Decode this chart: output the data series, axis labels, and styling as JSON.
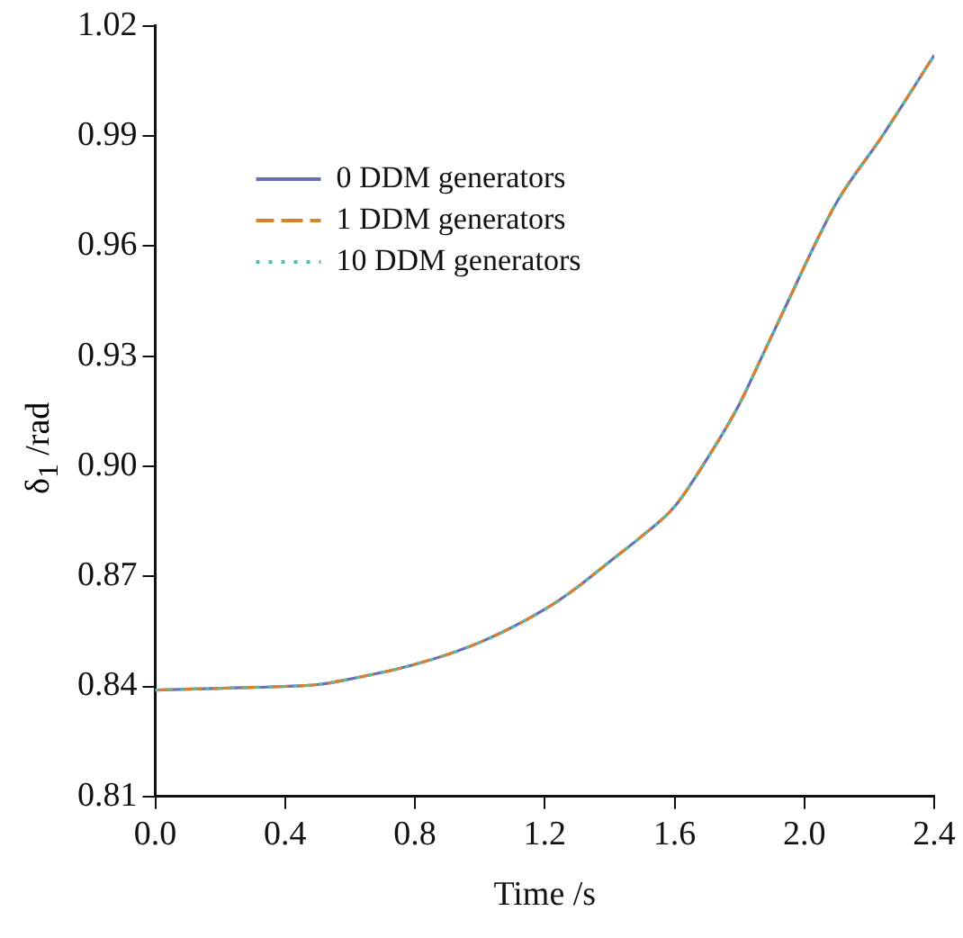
{
  "chart_data": {
    "type": "line",
    "xlabel": "Time /s",
    "ylabel": "δ$_{1}$ /rad",
    "x": [
      0,
      0.2,
      0.4,
      0.5,
      0.6,
      0.8,
      1.0,
      1.2,
      1.3,
      1.4,
      1.5,
      1.6,
      1.7,
      1.8,
      1.87,
      1.95,
      2.03,
      2.1,
      2.24,
      2.4
    ],
    "series": [
      {
        "name": "0 DDM generators",
        "color": "#6a6fb5",
        "line_style": "solid",
        "values": [
          0.839,
          0.8395,
          0.84,
          0.8405,
          0.842,
          0.846,
          0.852,
          0.861,
          0.867,
          0.874,
          0.881,
          0.889,
          0.902,
          0.917,
          0.93,
          0.945,
          0.96,
          0.972,
          0.99,
          1.012
        ]
      },
      {
        "name": "1 DDM generators",
        "color": "#d9822b",
        "line_style": "dashed",
        "values": [
          0.839,
          0.8395,
          0.84,
          0.8405,
          0.842,
          0.846,
          0.852,
          0.861,
          0.867,
          0.874,
          0.881,
          0.889,
          0.902,
          0.917,
          0.93,
          0.945,
          0.96,
          0.972,
          0.99,
          1.012
        ]
      },
      {
        "name": "10 DDM generators",
        "color": "#4cc1b0",
        "line_style": "dotted",
        "values": [
          0.839,
          0.8395,
          0.84,
          0.8405,
          0.842,
          0.846,
          0.852,
          0.861,
          0.867,
          0.874,
          0.881,
          0.889,
          0.902,
          0.917,
          0.93,
          0.945,
          0.96,
          0.972,
          0.99,
          1.012
        ]
      }
    ],
    "xlim": [
      0,
      2.4
    ],
    "xticks": [
      {
        "value": 0,
        "label": "0.0"
      },
      0.4,
      0.8,
      1.2,
      1.6,
      {
        "value": 2,
        "label": "2.0"
      },
      2.4
    ],
    "ylim": [
      0.81,
      1.02
    ],
    "yticks": [
      0.81,
      0.84,
      0.87,
      {
        "value": 0.9,
        "label": "0.90"
      },
      0.93,
      0.96,
      0.99,
      1.02
    ],
    "legend": "top left"
  }
}
